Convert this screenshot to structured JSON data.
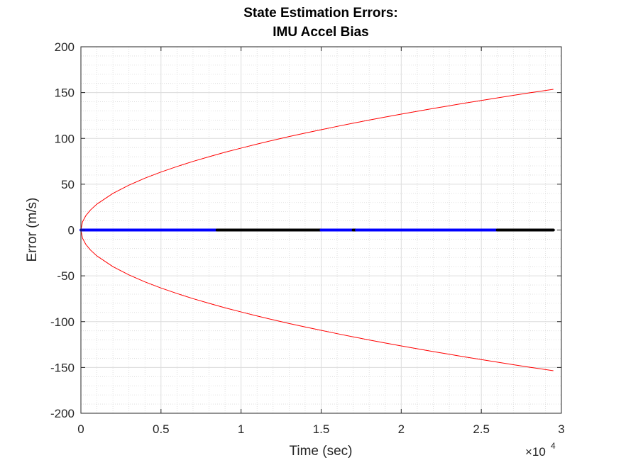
{
  "chart_data": {
    "type": "line",
    "title": [
      "State Estimation Errors:",
      "IMU Accel Bias"
    ],
    "xlabel": "Time (sec)",
    "ylabel": "Error (m/s)",
    "xlim": [
      0,
      30000
    ],
    "ylim": [
      -200,
      200
    ],
    "x_ticks": [
      0,
      5000,
      10000,
      15000,
      20000,
      25000,
      30000
    ],
    "x_tick_labels": [
      "0",
      "0.5",
      "1",
      "1.5",
      "2",
      "2.5",
      "3"
    ],
    "x_exponent_label": {
      "base": "×10",
      "exponent": "4"
    },
    "y_ticks": [
      200,
      150,
      100,
      50,
      0,
      -50,
      -100,
      -150,
      -200
    ],
    "y_tick_labels": [
      "200",
      "150",
      "100",
      "50",
      "0",
      "-50",
      "-100",
      "-150",
      "-200"
    ],
    "grid": true,
    "minor_grid": true,
    "series": [
      {
        "color": "#ff0000",
        "style": "thin line",
        "x": [
          0,
          100,
          300,
          600,
          1000,
          2000,
          3000,
          4000,
          5000,
          6000,
          7000,
          8000,
          9000,
          10000,
          11000,
          12000,
          13000,
          14000,
          15000,
          16000,
          17000,
          18000,
          19000,
          20000,
          21000,
          22000,
          23000,
          24000,
          25000,
          26000,
          27000,
          28000,
          29500
        ],
        "y": [
          0,
          8.9,
          15.5,
          21.9,
          28.3,
          40.0,
          49.0,
          56.6,
          63.3,
          69.3,
          74.9,
          80.0,
          84.9,
          89.4,
          93.8,
          98.0,
          102.0,
          105.8,
          109.5,
          113.1,
          116.6,
          120.0,
          123.3,
          126.5,
          129.6,
          132.7,
          135.6,
          138.6,
          141.4,
          144.2,
          147.0,
          149.7,
          153.6
        ]
      },
      {
        "color": "#ff0000",
        "style": "thin line",
        "x": [
          0,
          100,
          300,
          600,
          1000,
          2000,
          3000,
          4000,
          5000,
          6000,
          7000,
          8000,
          9000,
          10000,
          11000,
          12000,
          13000,
          14000,
          15000,
          16000,
          17000,
          18000,
          19000,
          20000,
          21000,
          22000,
          23000,
          24000,
          25000,
          26000,
          27000,
          28000,
          29500
        ],
        "y": [
          0,
          -8.9,
          -15.5,
          -21.9,
          -28.3,
          -40.0,
          -49.0,
          -56.6,
          -63.3,
          -69.3,
          -74.9,
          -80.0,
          -84.9,
          -89.4,
          -93.8,
          -98.0,
          -102.0,
          -105.8,
          -109.5,
          -113.1,
          -116.6,
          -120.0,
          -123.3,
          -126.5,
          -129.6,
          -132.7,
          -135.6,
          -138.6,
          -141.4,
          -144.2,
          -147.0,
          -149.7,
          -153.6
        ]
      },
      {
        "color": "#0000ff",
        "style": "thick line",
        "x": [
          0,
          8500
        ],
        "y": [
          0,
          0
        ]
      },
      {
        "color": "#000000",
        "style": "thick line",
        "x": [
          8500,
          15000
        ],
        "y": [
          0,
          0
        ]
      },
      {
        "color": "#0000ff",
        "style": "thick line",
        "x": [
          15000,
          17000
        ],
        "y": [
          0,
          0
        ]
      },
      {
        "color": "#000000",
        "style": "thick line",
        "x": [
          17000,
          17200
        ],
        "y": [
          0,
          0
        ]
      },
      {
        "color": "#0000ff",
        "style": "thick line",
        "x": [
          17200,
          26000
        ],
        "y": [
          0,
          0
        ]
      },
      {
        "color": "#000000",
        "style": "thick line",
        "x": [
          26000,
          29500
        ],
        "y": [
          0,
          0
        ]
      }
    ]
  }
}
